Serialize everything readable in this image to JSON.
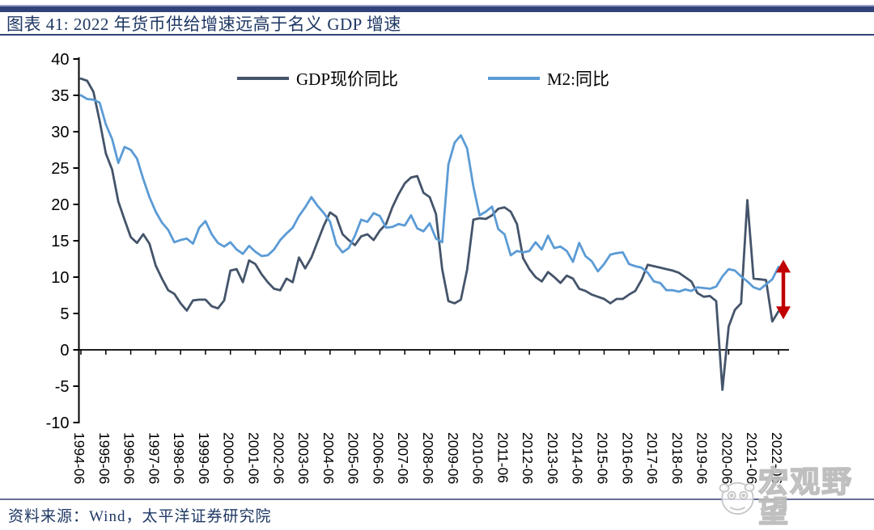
{
  "header": {
    "title": "图表 41: 2022 年货币供给增速远高于名义 GDP 增速"
  },
  "footer": {
    "source": "资料来源：Wind，太平洋证券研究院"
  },
  "watermark": {
    "icon": "pig-face-icon",
    "text": "宏观野望"
  },
  "chart_data": {
    "type": "line",
    "title": "",
    "xlabel": "",
    "ylabel": "",
    "x_start": "1994-06",
    "x_end": "2022-06",
    "frequency": "quarterly",
    "ylim": [
      -10,
      40
    ],
    "y_ticks": [
      40,
      35,
      30,
      25,
      20,
      15,
      10,
      5,
      0,
      -5,
      -10
    ],
    "grid": false,
    "legend_position": "top-center",
    "x_tick_labels": [
      "1994-06",
      "1995-06",
      "1996-06",
      "1997-06",
      "1998-06",
      "1999-06",
      "2000-06",
      "2001-06",
      "2002-06",
      "2003-06",
      "2004-06",
      "2005-06",
      "2006-06",
      "2007-06",
      "2008-06",
      "2009-06",
      "2010-06",
      "2011-06",
      "2012-06",
      "2013-06",
      "2014-06",
      "2015-06",
      "2016-06",
      "2017-06",
      "2018-06",
      "2019-06",
      "2020-06",
      "2021-06",
      "2022-06"
    ],
    "series": [
      {
        "name": "GDP现价同比",
        "color": "#44546A",
        "values": [
          37.3,
          37.0,
          35.5,
          31.5,
          27.0,
          24.8,
          20.4,
          17.9,
          15.5,
          14.7,
          15.9,
          14.6,
          11.6,
          9.8,
          8.2,
          7.7,
          6.4,
          5.4,
          6.8,
          6.9,
          6.9,
          6.0,
          5.7,
          6.8,
          10.9,
          11.1,
          9.3,
          12.3,
          11.8,
          10.4,
          9.3,
          8.4,
          8.2,
          9.8,
          9.3,
          12.7,
          11.2,
          12.7,
          14.9,
          17.1,
          18.9,
          18.3,
          15.9,
          15.1,
          14.4,
          15.6,
          15.9,
          15.1,
          16.4,
          17.3,
          19.6,
          21.4,
          22.9,
          23.7,
          23.9,
          21.6,
          21.0,
          18.7,
          11.1,
          6.7,
          6.4,
          6.9,
          11.0,
          17.9,
          18.1,
          18.0,
          18.5,
          19.4,
          19.6,
          19.0,
          17.3,
          12.6,
          11.1,
          10.0,
          9.4,
          10.7,
          10.0,
          9.2,
          10.2,
          9.8,
          8.4,
          8.1,
          7.6,
          7.3,
          7.0,
          6.4,
          7.0,
          7.0,
          7.6,
          8.1,
          9.6,
          11.7,
          11.5,
          11.3,
          11.1,
          10.9,
          10.6,
          10.0,
          9.4,
          7.8,
          7.3,
          7.4,
          6.7,
          -5.5,
          3.2,
          5.5,
          6.4,
          20.6,
          9.8,
          9.7,
          9.6,
          3.9,
          5.3
        ]
      },
      {
        "name": "M2:同比",
        "color": "#5B9BD5",
        "values": [
          35.0,
          34.5,
          34.4,
          34.0,
          31.0,
          29.0,
          25.7,
          27.9,
          27.5,
          26.3,
          23.5,
          21.0,
          19.0,
          17.5,
          16.5,
          14.8,
          15.1,
          15.3,
          14.6,
          16.8,
          17.7,
          15.9,
          14.7,
          14.2,
          14.8,
          13.8,
          13.2,
          14.3,
          13.5,
          12.9,
          13.0,
          13.8,
          15.1,
          16.0,
          16.8,
          18.4,
          19.6,
          21.0,
          19.8,
          18.8,
          17.6,
          14.5,
          13.4,
          14.0,
          15.7,
          17.9,
          17.6,
          18.8,
          18.4,
          16.8,
          16.9,
          17.3,
          17.1,
          18.5,
          16.7,
          16.3,
          17.4,
          15.3,
          14.8,
          25.5,
          28.5,
          29.5,
          27.7,
          22.5,
          18.5,
          19.0,
          19.7,
          16.6,
          15.9,
          13.0,
          13.6,
          13.4,
          13.6,
          14.8,
          13.8,
          15.7,
          14.0,
          14.2,
          13.6,
          12.1,
          14.7,
          12.9,
          12.2,
          10.8,
          11.8,
          13.1,
          13.3,
          13.4,
          11.8,
          11.5,
          11.3,
          10.6,
          9.4,
          9.2,
          8.2,
          8.2,
          8.0,
          8.3,
          8.1,
          8.6,
          8.5,
          8.4,
          8.7,
          10.1,
          11.1,
          10.9,
          10.1,
          9.4,
          8.6,
          8.3,
          9.0,
          9.7,
          11.4
        ]
      }
    ],
    "annotation": {
      "type": "vertical-double-arrow",
      "meaning": "gap between M2 growth and nominal GDP growth in 2022",
      "color": "#C00000",
      "x_label": "2022-06",
      "top_value": 12.4,
      "bottom_value": 4.2
    }
  }
}
